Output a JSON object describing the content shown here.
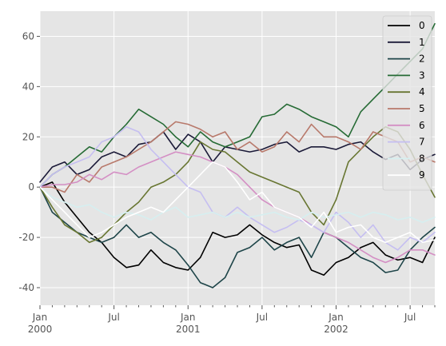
{
  "chart_data": {
    "type": "line",
    "x_unit": "month",
    "x_start": "2000-01",
    "x_end": "2002-09",
    "xlim": [
      "2000-01",
      "2002-09"
    ],
    "ylim": [
      -47,
      70
    ],
    "grid": true,
    "legend_placement": "top-right",
    "x_ticks": [
      {
        "x": "2000-01",
        "label": "Jan",
        "label2": "2000"
      },
      {
        "x": "2000-07",
        "label": "Jul",
        "label2": ""
      },
      {
        "x": "2001-01",
        "label": "Jan",
        "label2": "2001"
      },
      {
        "x": "2001-07",
        "label": "Jul",
        "label2": ""
      },
      {
        "x": "2002-01",
        "label": "Jan",
        "label2": "2002"
      },
      {
        "x": "2002-07",
        "label": "Jul",
        "label2": ""
      }
    ],
    "y_ticks": [
      -40,
      -20,
      0,
      20,
      40,
      60
    ],
    "series": [
      {
        "name": "0",
        "color": "#000000",
        "values": [
          0,
          2,
          -6,
          -12,
          -18,
          -22,
          -28,
          -32,
          -31,
          -25,
          -30,
          -32,
          -33,
          -28,
          -18,
          -20,
          -19,
          -15,
          -19,
          -22,
          -24,
          -23,
          -33,
          -35,
          -30,
          -28,
          -24,
          -22,
          -27,
          -29,
          -28,
          -30,
          -20
        ]
      },
      {
        "name": "1",
        "color": "#1b1a38",
        "values": [
          2,
          8,
          10,
          5,
          7,
          12,
          14,
          12,
          17,
          18,
          22,
          15,
          21,
          18,
          10,
          16,
          15,
          14,
          15,
          17,
          18,
          14,
          16,
          16,
          15,
          17,
          18,
          14,
          11,
          13,
          7,
          11,
          13
        ]
      },
      {
        "name": "2",
        "color": "#1e4549",
        "values": [
          0,
          -10,
          -14,
          -18,
          -20,
          -22,
          -20,
          -15,
          -20,
          -18,
          -22,
          -25,
          -31,
          -38,
          -40,
          -36,
          -26,
          -24,
          -20,
          -25,
          -22,
          -20,
          -28,
          -18,
          -20,
          -24,
          -28,
          -30,
          -34,
          -33,
          -25,
          -20,
          -16
        ]
      },
      {
        "name": "3",
        "color": "#266b35",
        "values": [
          0,
          5,
          8,
          12,
          16,
          14,
          20,
          25,
          31,
          28,
          25,
          20,
          16,
          22,
          18,
          16,
          18,
          20,
          28,
          29,
          33,
          31,
          28,
          26,
          24,
          20,
          30,
          35,
          40,
          45,
          50,
          55,
          65
        ]
      },
      {
        "name": "4",
        "color": "#687632",
        "values": [
          0,
          -8,
          -15,
          -18,
          -22,
          -20,
          -15,
          -10,
          -6,
          0,
          2,
          5,
          10,
          18,
          15,
          14,
          10,
          6,
          4,
          2,
          0,
          -2,
          -10,
          -15,
          -5,
          10,
          15,
          20,
          24,
          22,
          15,
          5,
          -4
        ]
      },
      {
        "name": "5",
        "color": "#b8796b",
        "values": [
          0,
          0,
          -2,
          5,
          2,
          8,
          10,
          12,
          15,
          18,
          22,
          26,
          25,
          23,
          20,
          22,
          15,
          18,
          14,
          16,
          22,
          18,
          25,
          20,
          20,
          18,
          15,
          22,
          20,
          18,
          10,
          12,
          10
        ]
      },
      {
        "name": "6",
        "color": "#d48fc4",
        "values": [
          0,
          1,
          1,
          2,
          5,
          3,
          6,
          5,
          8,
          10,
          12,
          14,
          13,
          12,
          10,
          8,
          5,
          0,
          -5,
          -8,
          -10,
          -12,
          -15,
          -18,
          -20,
          -22,
          -25,
          -28,
          -30,
          -28,
          -25,
          -25,
          -27
        ]
      },
      {
        "name": "7",
        "color": "#c5bef1",
        "values": [
          0,
          5,
          8,
          10,
          12,
          18,
          20,
          24,
          22,
          15,
          10,
          5,
          0,
          -2,
          -10,
          -12,
          -8,
          -12,
          -15,
          -18,
          -16,
          -13,
          -15,
          -18,
          -10,
          -14,
          -20,
          -15,
          -22,
          -25,
          -20,
          -22,
          -18
        ]
      },
      {
        "name": "8",
        "color": "#d6eff0",
        "values": [
          0,
          -4,
          -6,
          -8,
          -7,
          -10,
          -12,
          -10,
          -11,
          -13,
          -10,
          -8,
          -12,
          -11,
          -10,
          -12,
          -10,
          -12,
          -11,
          -10,
          -12,
          -13,
          -10,
          -12,
          -11,
          -10,
          -12,
          -10,
          -11,
          -13,
          -12,
          -14,
          -12
        ]
      },
      {
        "name": "9",
        "color": "#ffffff",
        "values": [
          0,
          -5,
          -10,
          -15,
          -20,
          -18,
          -15,
          -12,
          -10,
          -8,
          -10,
          -5,
          0,
          5,
          10,
          8,
          2,
          -5,
          -2,
          -8,
          -10,
          -12,
          -16,
          -10,
          -18,
          -16,
          -15,
          -20,
          -22,
          -20,
          -18,
          -22,
          -21
        ]
      }
    ]
  }
}
